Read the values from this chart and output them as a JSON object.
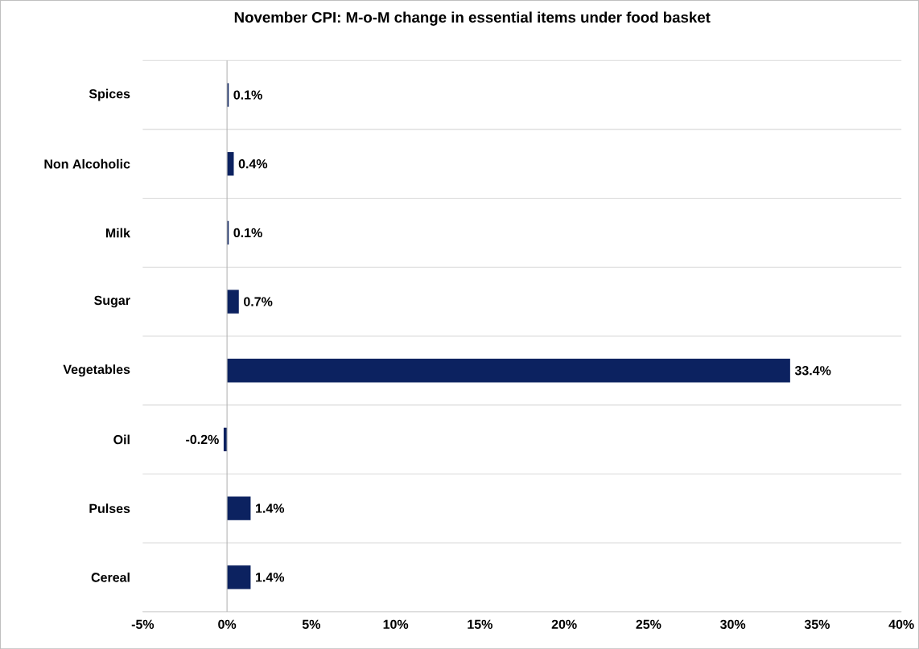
{
  "chart_data": {
    "type": "bar",
    "orientation": "horizontal",
    "title": "November CPI: M-o-M change in essential items under food basket",
    "categories": [
      "Spices",
      "Non Alcoholic",
      "Milk",
      "Sugar",
      "Vegetables",
      "Oil",
      "Pulses",
      "Cereal"
    ],
    "values": [
      0.1,
      0.4,
      0.1,
      0.7,
      33.4,
      -0.2,
      1.4,
      1.4
    ],
    "value_labels": [
      "0.1%",
      "0.4%",
      "0.1%",
      "0.7%",
      "33.4%",
      "-0.2%",
      "1.4%",
      "1.4%"
    ],
    "color": "#0c2260",
    "xlim": [
      -5,
      40
    ],
    "xticks": [
      {
        "value": -5,
        "label": "-5%"
      },
      {
        "value": 0,
        "label": "0%"
      },
      {
        "value": 5,
        "label": "5%"
      },
      {
        "value": 10,
        "label": "10%"
      },
      {
        "value": 15,
        "label": "15%"
      },
      {
        "value": 20,
        "label": "20%"
      },
      {
        "value": 25,
        "label": "25%"
      },
      {
        "value": 30,
        "label": "30%"
      },
      {
        "value": 35,
        "label": "35%"
      },
      {
        "value": 40,
        "label": "40%"
      }
    ],
    "grid": "y"
  }
}
